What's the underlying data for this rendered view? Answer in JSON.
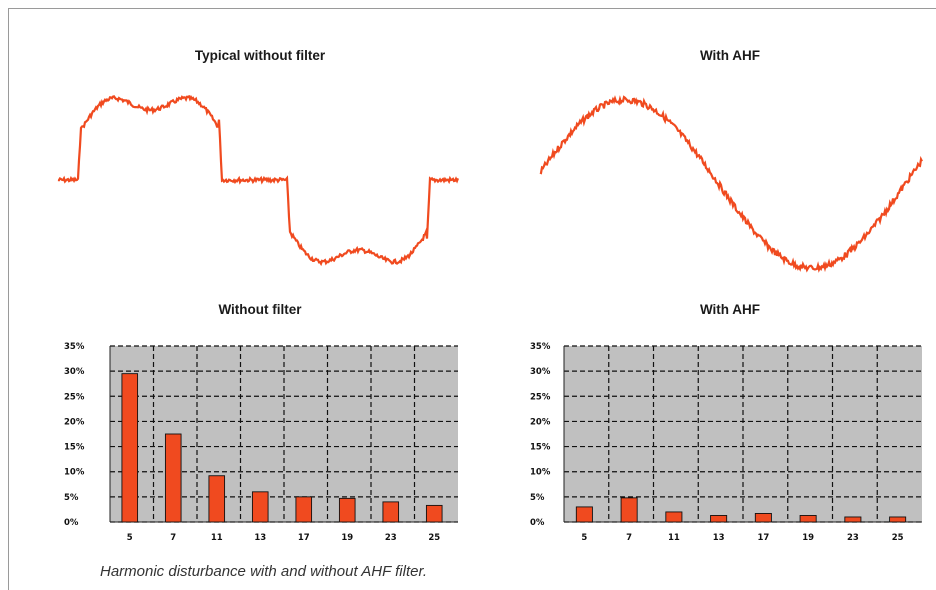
{
  "titles": {
    "wave_left": "Typical without filter",
    "wave_right": "With AHF",
    "bar_left": "Without filter",
    "bar_right": "With AHF"
  },
  "caption": "Harmonic disturbance with and without AHF filter.",
  "colors": {
    "series": "#f04a1f",
    "plot_bg": "#c0c0c0",
    "grid": "#111111"
  },
  "chart_data": [
    {
      "type": "line",
      "title": "Typical without filter",
      "description_shape": "distorted current waveform",
      "axes_visible": false
    },
    {
      "type": "line",
      "title": "With AHF",
      "description_shape": "near-sinusoidal current waveform",
      "axes_visible": false
    },
    {
      "type": "bar",
      "title": "Without filter",
      "categories": [
        "5",
        "7",
        "11",
        "13",
        "17",
        "19",
        "23",
        "25"
      ],
      "values": [
        29.5,
        17.5,
        9.2,
        6.0,
        5.0,
        4.7,
        4.0,
        3.3
      ],
      "yticks": [
        "35%",
        "30%",
        "25%",
        "20%",
        "15%",
        "10%",
        "5%",
        "0%"
      ],
      "ylim": [
        0,
        35
      ],
      "grid": true
    },
    {
      "type": "bar",
      "title": "With AHF",
      "categories": [
        "5",
        "7",
        "11",
        "13",
        "17",
        "19",
        "23",
        "25"
      ],
      "values": [
        3.0,
        4.8,
        2.0,
        1.3,
        1.7,
        1.3,
        1.0,
        1.0
      ],
      "yticks": [
        "35%",
        "30%",
        "25%",
        "20%",
        "15%",
        "10%",
        "5%",
        "0%"
      ],
      "ylim": [
        0,
        35
      ],
      "grid": true
    }
  ]
}
